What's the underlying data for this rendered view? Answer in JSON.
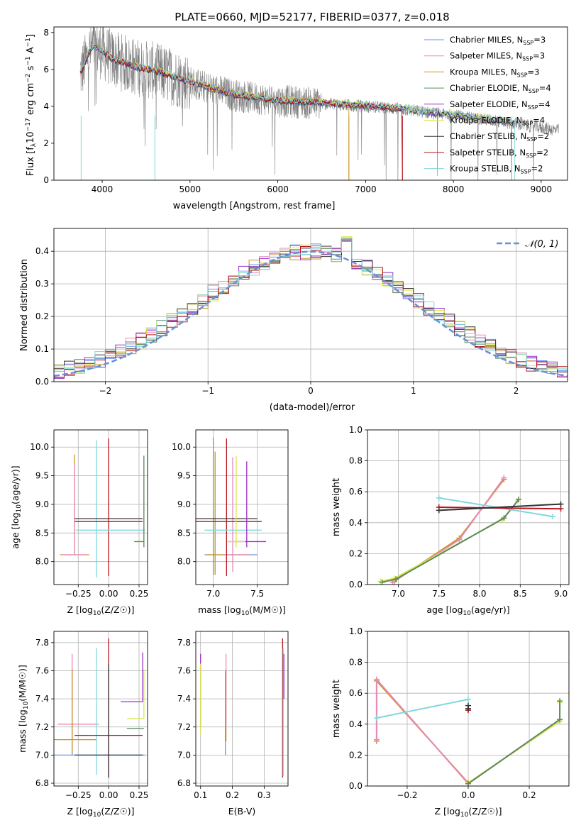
{
  "figure_title": "PLATE=0660, MJD=52177, FIBERID=0377, z=0.018",
  "series_styles": [
    {
      "name": "Chabrier MILES",
      "nssp": "3",
      "color": "#6495ed"
    },
    {
      "name": "Salpeter MILES",
      "nssp": "3",
      "color": "#e889b6"
    },
    {
      "name": "Kroupa MILES",
      "nssp": "3",
      "color": "#c8961e"
    },
    {
      "name": "Chabrier ELODIE",
      "nssp": "4",
      "color": "#5c8a5c"
    },
    {
      "name": "Salpeter ELODIE",
      "nssp": "4",
      "color": "#9b30c8"
    },
    {
      "name": "Kroupa ELODIE",
      "nssp": "4",
      "color": "#d9e84a"
    },
    {
      "name": "Chabrier STELIB",
      "nssp": "2",
      "color": "#333333"
    },
    {
      "name": "Salpeter STELIB",
      "nssp": "2",
      "color": "#b8141e"
    },
    {
      "name": "Kroupa STELIB",
      "nssp": "2",
      "color": "#7fd8dc"
    }
  ],
  "chart_data": [
    {
      "id": "spectrum",
      "type": "line",
      "xlabel": "wavelength [Angstrom, rest frame]",
      "ylabel_parts": [
        "Flux [f",
        "λ",
        "10",
        "−17",
        " erg cm",
        "−2",
        " s",
        "−1",
        " A",
        "−1",
        "]"
      ],
      "xlim": [
        3450,
        9300
      ],
      "ylim": [
        0,
        8.3
      ],
      "xticks": [
        4000,
        5000,
        6000,
        7000,
        8000,
        9000
      ],
      "yticks": [
        0,
        2,
        4,
        6,
        8
      ],
      "legend_sub": "SSP",
      "legend_placement": "right",
      "data_color": "#808080",
      "data_wavelength_range": [
        3750,
        9200
      ],
      "continuum": {
        "x": [
          3750,
          3800,
          3850,
          3900,
          4000,
          4100,
          4200,
          4400,
          4600,
          4800,
          5000,
          5200,
          5500,
          6000,
          6500,
          7000,
          7400,
          8000,
          8500,
          9200
        ],
        "y": [
          5.8,
          6.3,
          6.9,
          7.2,
          7.0,
          6.6,
          6.4,
          6.1,
          5.9,
          5.6,
          5.3,
          5.0,
          4.6,
          4.3,
          4.15,
          4.0,
          3.85,
          3.5,
          3.2,
          2.7
        ]
      }
    },
    {
      "id": "residual-histogram",
      "type": "bar",
      "xlabel": "(data-model)/error",
      "ylabel": "Normed distribution",
      "xlim": [
        -2.5,
        2.5
      ],
      "ylim": [
        0,
        0.47
      ],
      "xticks": [
        -2,
        -1,
        0,
        1,
        2
      ],
      "yticks": [
        0.0,
        0.1,
        0.2,
        0.3,
        0.4
      ],
      "bin_width": 0.1,
      "reference": {
        "name": "𝒩(0, 1)",
        "mean": 0,
        "sigma": 1,
        "color": "#6a8fd8",
        "dashed": true
      }
    },
    {
      "id": "age-vs-Z",
      "type": "scatter",
      "xlabel": "Z [log10(Z/Z☉)]",
      "ylabel": "age  [log10(age/yr)]",
      "xlim": [
        -0.45,
        0.32
      ],
      "ylim": [
        7.6,
        10.3
      ],
      "xticks": [
        -0.25,
        0.0,
        0.25
      ],
      "xticklabels": [
        "−0.25",
        "0.00",
        "0.25"
      ],
      "yticks": [
        8.0,
        8.5,
        9.0,
        9.5,
        10.0
      ],
      "crosses": [
        {
          "s": 2,
          "x": -0.28,
          "y": 8.12,
          "xerr": [
            0.12,
            0.12
          ],
          "yerr": [
            0,
            1.75
          ]
        },
        {
          "s": 1,
          "x": -0.28,
          "y": 8.12,
          "xerr": [
            0.1,
            0.1
          ],
          "yerr": [
            0,
            1.6
          ]
        },
        {
          "s": 8,
          "x": -0.1,
          "y": 8.12,
          "xerr": [
            0,
            0
          ],
          "yerr": [
            0.4,
            2.0
          ]
        },
        {
          "s": 7,
          "x": 0.0,
          "y": 8.7,
          "xerr": [
            0.28,
            0.28
          ],
          "yerr": [
            0.95,
            1.45
          ]
        },
        {
          "s": 6,
          "x": 0.0,
          "y": 8.75,
          "xerr": [
            0.28,
            0.28
          ],
          "yerr": [
            0,
            0
          ]
        },
        {
          "s": 8,
          "x": -0.05,
          "y": 8.55,
          "xerr": [
            0.22,
            0.35
          ],
          "yerr": [
            0,
            0
          ]
        },
        {
          "s": 5,
          "x": 0.29,
          "y": 8.35,
          "xerr": [
            0.08,
            0
          ],
          "yerr": [
            0.1,
            1.5
          ]
        },
        {
          "s": 3,
          "x": 0.29,
          "y": 8.35,
          "xerr": [
            0.08,
            0
          ],
          "yerr": [
            0.1,
            1.5
          ]
        }
      ]
    },
    {
      "id": "age-vs-mass",
      "type": "scatter",
      "xlabel": "mass [log10(M/M☉)]",
      "ylabel": "",
      "xlim": [
        6.8,
        7.85
      ],
      "ylim": [
        7.6,
        10.3
      ],
      "xticks": [
        7.0,
        7.5
      ],
      "xticklabels": [
        "7.0",
        "7.5"
      ],
      "yticks": [
        8.0,
        8.5,
        9.0,
        9.5,
        10.0
      ],
      "crosses": [
        {
          "s": 0,
          "x": 7.0,
          "y": 8.12,
          "xerr": [
            0.1,
            0.5
          ],
          "yerr": [
            0.35,
            2.05
          ]
        },
        {
          "s": 2,
          "x": 7.02,
          "y": 8.12,
          "xerr": [
            0.1,
            0.4
          ],
          "yerr": [
            0.35,
            1.8
          ]
        },
        {
          "s": 1,
          "x": 7.22,
          "y": 8.12,
          "xerr": [
            0.1,
            0.2
          ],
          "yerr": [
            0.3,
            1.7
          ]
        },
        {
          "s": 7,
          "x": 7.15,
          "y": 8.7,
          "xerr": [
            0.4,
            0.4
          ],
          "yerr": [
            0.95,
            1.45
          ]
        },
        {
          "s": 6,
          "x": 7.1,
          "y": 8.75,
          "xerr": [
            0.4,
            0.4
          ],
          "yerr": [
            0,
            0
          ]
        },
        {
          "s": 8,
          "x": 7.15,
          "y": 8.55,
          "xerr": [
            0.25,
            0.4
          ],
          "yerr": [
            0,
            0
          ]
        },
        {
          "s": 4,
          "x": 7.38,
          "y": 8.35,
          "xerr": [
            0.22,
            0.22
          ],
          "yerr": [
            0.1,
            1.4
          ]
        },
        {
          "s": 5,
          "x": 7.26,
          "y": 8.35,
          "xerr": [
            0.1,
            0.1
          ],
          "yerr": [
            0.1,
            1.5
          ]
        }
      ]
    },
    {
      "id": "weight-vs-age",
      "type": "line",
      "xlabel": "age  [log10(age/yr)]",
      "ylabel": "mass weight",
      "xlim": [
        6.62,
        9.1
      ],
      "ylim": [
        0,
        1
      ],
      "xticks": [
        7.0,
        7.5,
        8.0,
        8.5,
        9.0
      ],
      "xticklabels": [
        "7.0",
        "7.5",
        "8.0",
        "8.5",
        "9.0"
      ],
      "yticks": [
        0.0,
        0.2,
        0.4,
        0.6,
        0.8,
        1.0
      ],
      "lines": [
        {
          "s": 2,
          "x": [
            6.95,
            7.75,
            8.3
          ],
          "y": [
            0.02,
            0.3,
            0.68
          ]
        },
        {
          "s": 1,
          "x": [
            6.93,
            7.75,
            8.3
          ],
          "y": [
            0.015,
            0.29,
            0.69
          ]
        },
        {
          "s": 5,
          "x": [
            6.78,
            6.95,
            8.28,
            8.47
          ],
          "y": [
            0.02,
            0.04,
            0.42,
            0.54
          ]
        },
        {
          "s": 3,
          "x": [
            6.8,
            6.97,
            8.3,
            8.48
          ],
          "y": [
            0.015,
            0.035,
            0.43,
            0.55
          ]
        },
        {
          "s": 8,
          "x": [
            7.5,
            8.9
          ],
          "y": [
            0.56,
            0.44
          ]
        },
        {
          "s": 7,
          "x": [
            7.5,
            9.0
          ],
          "y": [
            0.5,
            0.49
          ]
        },
        {
          "s": 6,
          "x": [
            7.5,
            9.0
          ],
          "y": [
            0.48,
            0.52
          ]
        }
      ]
    },
    {
      "id": "mass-vs-Z",
      "type": "scatter",
      "xlabel": "Z [log10(Z/Z☉)]",
      "ylabel": "mass [log10(M/M☉)]",
      "xlim": [
        -0.45,
        0.32
      ],
      "ylim": [
        6.78,
        7.88
      ],
      "xticks": [
        -0.25,
        0.0,
        0.25
      ],
      "xticklabels": [
        "−0.25",
        "0.00",
        "0.25"
      ],
      "yticks": [
        6.8,
        7.0,
        7.2,
        7.4,
        7.6,
        7.8
      ],
      "crosses": [
        {
          "s": 0,
          "x": -0.3,
          "y": 7.0,
          "xerr": [
            0.15,
            0.6
          ],
          "yerr": [
            0,
            0.5
          ]
        },
        {
          "s": 1,
          "x": -0.3,
          "y": 7.22,
          "xerr": [
            0.12,
            0.22
          ],
          "yerr": [
            0.2,
            0.5
          ]
        },
        {
          "s": 2,
          "x": -0.3,
          "y": 7.11,
          "xerr": [
            0.15,
            0.2
          ],
          "yerr": [
            0.1,
            0.5
          ]
        },
        {
          "s": 8,
          "x": -0.1,
          "y": 7.0,
          "xerr": [
            0,
            0
          ],
          "yerr": [
            0.14,
            0.76
          ]
        },
        {
          "s": 7,
          "x": 0.0,
          "y": 7.14,
          "xerr": [
            0.28,
            0.28
          ],
          "yerr": [
            0.3,
            0.69
          ]
        },
        {
          "s": 6,
          "x": 0.0,
          "y": 7.0,
          "xerr": [
            0.28,
            0.28
          ],
          "yerr": [
            0.16,
            0.65
          ]
        },
        {
          "s": 4,
          "x": 0.28,
          "y": 7.38,
          "xerr": [
            0.18,
            0
          ],
          "yerr": [
            0,
            0.35
          ]
        },
        {
          "s": 5,
          "x": 0.29,
          "y": 7.26,
          "xerr": [
            0.14,
            0
          ],
          "yerr": [
            0,
            0.35
          ]
        },
        {
          "s": 3,
          "x": 0.29,
          "y": 7.19,
          "xerr": [
            0.14,
            0
          ],
          "yerr": [
            0,
            0
          ]
        }
      ]
    },
    {
      "id": "mass-vs-EBV",
      "type": "scatter",
      "xlabel": "E(B-V)",
      "ylabel": "",
      "xlim": [
        0.085,
        0.375
      ],
      "ylim": [
        6.78,
        7.88
      ],
      "xticks": [
        0.1,
        0.2,
        0.3
      ],
      "xticklabels": [
        "0.1",
        "0.2",
        "0.3"
      ],
      "yticks": [
        6.8,
        7.0,
        7.2,
        7.4,
        7.6,
        7.8
      ],
      "crosses": [
        {
          "s": 4,
          "x": 0.1,
          "y": 7.5,
          "xerr": [
            0,
            0
          ],
          "yerr": [
            0.3,
            0.22
          ]
        },
        {
          "s": 5,
          "x": 0.1,
          "y": 7.45,
          "xerr": [
            0,
            0
          ],
          "yerr": [
            0.3,
            0.2
          ]
        },
        {
          "s": 0,
          "x": 0.178,
          "y": 7.3,
          "xerr": [
            0,
            0
          ],
          "yerr": [
            0.3,
            0.3
          ]
        },
        {
          "s": 2,
          "x": 0.18,
          "y": 7.35,
          "xerr": [
            0,
            0
          ],
          "yerr": [
            0.25,
            0.26
          ]
        },
        {
          "s": 1,
          "x": 0.18,
          "y": 7.45,
          "xerr": [
            0,
            0
          ],
          "yerr": [
            0.25,
            0.27
          ]
        },
        {
          "s": 7,
          "x": 0.358,
          "y": 7.4,
          "xerr": [
            0,
            0
          ],
          "yerr": [
            0.56,
            0.43
          ]
        },
        {
          "s": 8,
          "x": 0.36,
          "y": 7.3,
          "xerr": [
            0,
            0
          ],
          "yerr": [
            0.45,
            0.46
          ]
        },
        {
          "s": 4,
          "x": 0.362,
          "y": 7.6,
          "xerr": [
            0,
            0
          ],
          "yerr": [
            0.2,
            0.12
          ]
        }
      ]
    },
    {
      "id": "weight-vs-Z",
      "type": "line",
      "xlabel": "Z [log10(Z/Z☉)]",
      "ylabel": "mass weight",
      "xlim": [
        -0.33,
        0.33
      ],
      "ylim": [
        0,
        1
      ],
      "xticks": [
        -0.2,
        0.0,
        0.2
      ],
      "xticklabels": [
        "−0.2",
        "0.0",
        "0.2"
      ],
      "yticks": [
        0.0,
        0.2,
        0.4,
        0.6,
        0.8,
        1.0
      ],
      "lines": [
        {
          "s": 2,
          "x": [
            -0.3,
            -0.3,
            0.0,
            0.3
          ],
          "y": [
            0.29,
            0.68,
            0.02,
            0.42
          ]
        },
        {
          "s": 1,
          "x": [
            -0.3,
            -0.3,
            0.0,
            0.3
          ],
          "y": [
            0.3,
            0.69,
            0.015,
            0.43
          ]
        },
        {
          "s": 5,
          "x": [
            0.0,
            0.3,
            0.3
          ],
          "y": [
            0.02,
            0.42,
            0.54
          ]
        },
        {
          "s": 3,
          "x": [
            0.0,
            0.3,
            0.3
          ],
          "y": [
            0.015,
            0.43,
            0.55
          ]
        },
        {
          "s": 8,
          "x": [
            -0.3,
            0.0
          ],
          "y": [
            0.44,
            0.56
          ]
        },
        {
          "s": 7,
          "x": [
            0.0,
            0.0
          ],
          "y": [
            0.49,
            0.5
          ]
        },
        {
          "s": 6,
          "x": [
            0.0,
            0.0
          ],
          "y": [
            0.5,
            0.52
          ]
        }
      ]
    }
  ]
}
